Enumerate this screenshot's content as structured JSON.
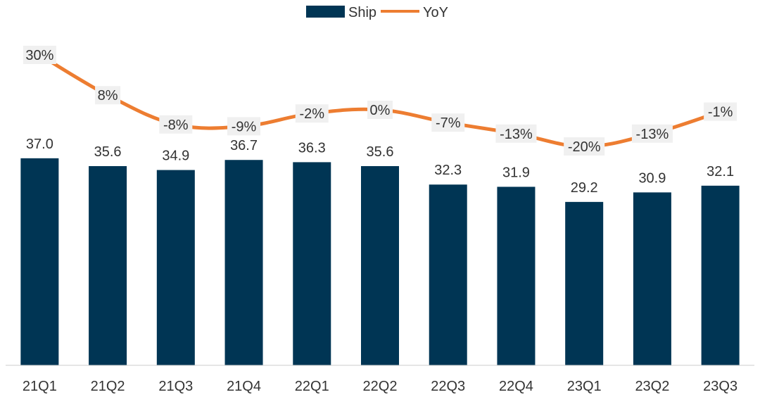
{
  "chart_data": {
    "type": "bar",
    "title": "",
    "xlabel": "",
    "ylabel": "",
    "legend_position": "top-center",
    "grid": false,
    "categories": [
      "21Q1",
      "21Q2",
      "21Q3",
      "21Q4",
      "22Q1",
      "22Q2",
      "22Q3",
      "22Q4",
      "23Q1",
      "23Q2",
      "23Q3"
    ],
    "series": [
      {
        "name": "Ship",
        "type": "bar",
        "color": "#003554",
        "values": [
          37.0,
          35.6,
          34.9,
          36.7,
          36.3,
          35.6,
          32.3,
          31.9,
          29.2,
          30.9,
          32.1
        ],
        "labels": [
          "37.0",
          "35.6",
          "34.9",
          "36.7",
          "36.3",
          "35.6",
          "32.3",
          "31.9",
          "29.2",
          "30.9",
          "32.1"
        ]
      },
      {
        "name": "YoY",
        "type": "line",
        "color": "#ed7d31",
        "values": [
          30,
          8,
          -8,
          -9,
          -2,
          0,
          -7,
          -13,
          -20,
          -13,
          -1
        ],
        "labels": [
          "30%",
          "8%",
          "-8%",
          "-9%",
          "-2%",
          "0%",
          "-7%",
          "-13%",
          "-20%",
          "-13%",
          "-1%"
        ]
      }
    ],
    "ylim": [
      0,
      40
    ],
    "y2lim": [
      -40,
      40
    ]
  }
}
